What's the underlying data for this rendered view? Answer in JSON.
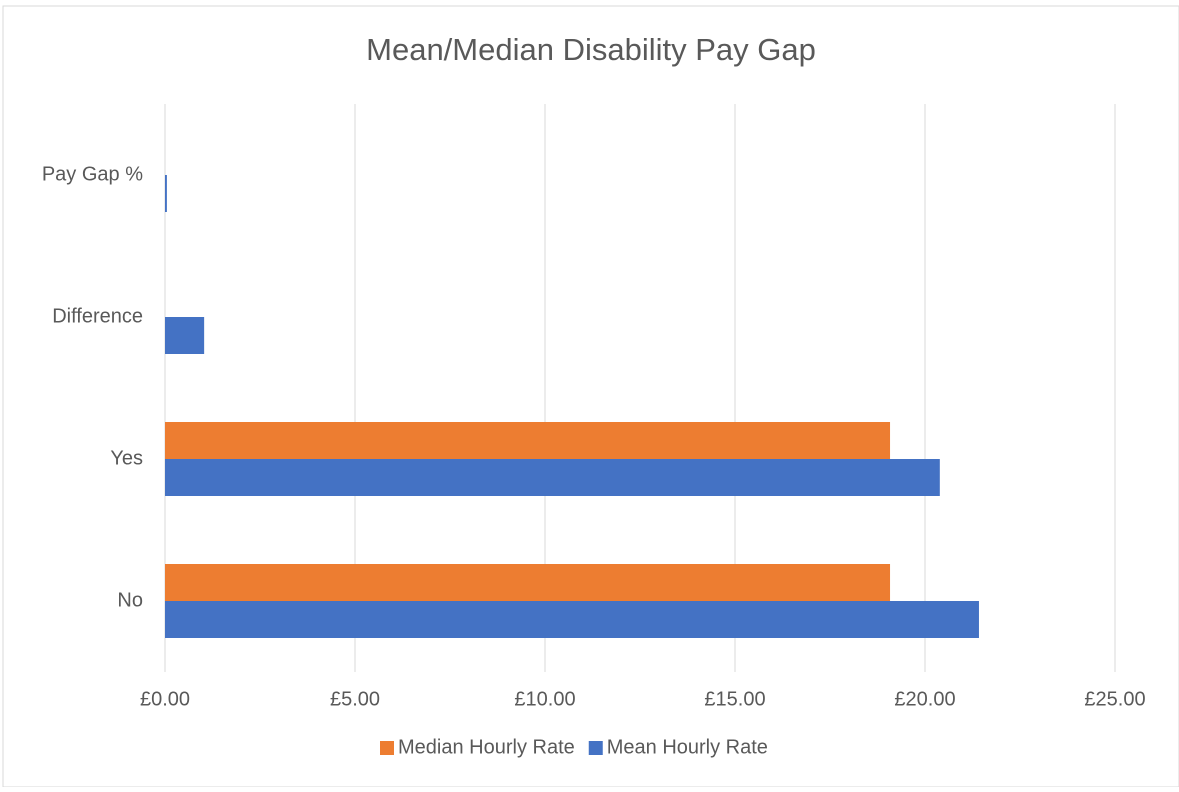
{
  "chart_data": {
    "type": "bar",
    "orientation": "horizontal",
    "title": "Mean/Median Disability Pay Gap",
    "categories": [
      "No",
      "Yes",
      "Difference",
      "Pay Gap %"
    ],
    "series": [
      {
        "name": "Median Hourly Rate",
        "color": "#ed7d31",
        "values": [
          19.08,
          19.08,
          0,
          0
        ]
      },
      {
        "name": "Mean Hourly Rate",
        "color": "#4472c4",
        "values": [
          21.42,
          20.39,
          1.03,
          0.05
        ]
      }
    ],
    "xlim": [
      0,
      25
    ],
    "xticks": [
      {
        "value": 0,
        "label": "£0.00"
      },
      {
        "value": 5,
        "label": "£5.00"
      },
      {
        "value": 10,
        "label": "£10.00"
      },
      {
        "value": 15,
        "label": "£15.00"
      },
      {
        "value": 20,
        "label": "£20.00"
      },
      {
        "value": 25,
        "label": "£25.00"
      }
    ],
    "grid": true,
    "legend": "bottom"
  }
}
